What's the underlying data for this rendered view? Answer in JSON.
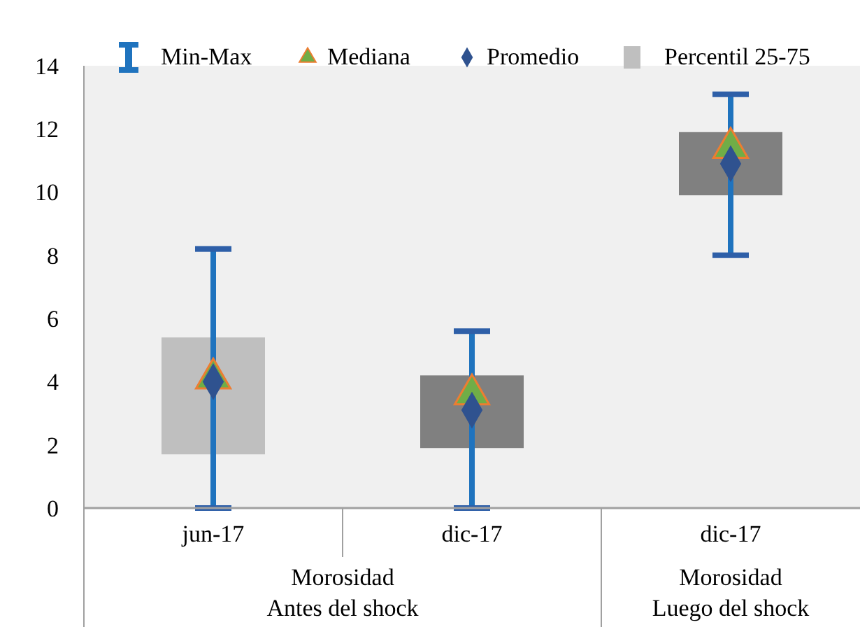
{
  "chart_data": {
    "type": "bar",
    "categories": [
      "jun-17",
      "dic-17",
      "dic-17"
    ],
    "series": [
      {
        "name": "Min-Max",
        "color": "#1f73be",
        "base": [
          0,
          0,
          8.0
        ],
        "values": [
          8.2,
          5.6,
          5.1
        ]
      },
      {
        "name": "Mediana",
        "type": "scatter",
        "marker": "triangle",
        "color": "#70ad47",
        "values": [
          4.1,
          3.6,
          11.4
        ]
      },
      {
        "name": "Promedio",
        "type": "scatter",
        "marker": "diamond",
        "color": "#2f528f",
        "values": [
          4.0,
          3.1,
          10.9
        ]
      },
      {
        "name": "Percentil 25-75",
        "type": "bar",
        "base": [
          1.7,
          1.9,
          9.9
        ],
        "values": [
          3.7,
          2.3,
          2.0
        ],
        "colors": [
          "#bfbfbf",
          "#808080",
          "#808080"
        ]
      }
    ],
    "ylim": [
      0,
      14
    ],
    "yticks": [
      0,
      2,
      4,
      6,
      8,
      10,
      12,
      14
    ],
    "legend": "top",
    "annotations": [
      "Morosidad\nAntes del shock",
      "Morosidad\nLuego del shock"
    ]
  }
}
